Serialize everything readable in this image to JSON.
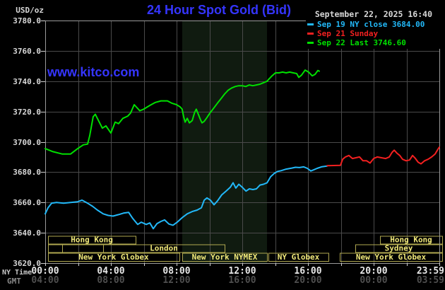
{
  "header": {
    "unit_label": "USD/oz",
    "title": "24 Hour Spot Gold (Bid)",
    "datetime": "September 22, 2025 16:40",
    "watermark": "www.kitco.com"
  },
  "legend": {
    "items": [
      {
        "label": "Sep 19 NY close 3684.00",
        "color": "#22b8f8"
      },
      {
        "label": "Sep 21 Sunday",
        "color": "#f22020"
      },
      {
        "label": "Sep 22 Last 3746.60",
        "color": "#00e000"
      }
    ]
  },
  "axes": {
    "ny_caption": "NY Time",
    "gmt_caption": "GMT"
  },
  "colors": {
    "background": "#000000",
    "grid": "#4a4a4a",
    "border": "#9a9a9a",
    "tick": "#d0d0d0",
    "title": "#3535ff",
    "date_text": "#d8d8d8",
    "y_label": "#d8d8d8",
    "x_label_ny": "#e8e8e8",
    "x_label_gmt": "#4f4f4f",
    "axis_caption_ny": "#c8c8c8",
    "axis_caption_gmt": "#8a8a8a",
    "session_border": "#b0a850",
    "session_text": "#f0e87a",
    "band": "#101b10"
  },
  "chart_data": {
    "type": "line",
    "title": "24 Hour Spot Gold (Bid)",
    "ylabel": "USD/oz",
    "ylim": [
      3620,
      3780
    ],
    "y_tick_step": 20,
    "grid": true,
    "legend_position": "top-right",
    "summary": {
      "sep19_ny_close": 3684.0,
      "sep22_last": 3746.6
    },
    "y_ticks": [
      {
        "value": 3780,
        "label": "3780.0"
      },
      {
        "value": 3760,
        "label": "3760.0"
      },
      {
        "value": 3740,
        "label": "3740.0"
      },
      {
        "value": 3720,
        "label": "3720.0"
      },
      {
        "value": 3700,
        "label": "3700.0"
      },
      {
        "value": 3680,
        "label": "3680.0"
      },
      {
        "value": 3660,
        "label": "3660.0"
      },
      {
        "value": 3640,
        "label": "3640.0"
      },
      {
        "value": 3620,
        "label": "3620.0"
      }
    ],
    "x_hours_range": [
      0,
      24
    ],
    "x_grid_step_hours": 2,
    "x_ticks": [
      {
        "hour": 0,
        "ny": "00:00",
        "gmt": "04:00"
      },
      {
        "hour": 4,
        "ny": "04:00",
        "gmt": "08:00"
      },
      {
        "hour": 8,
        "ny": "08:00",
        "gmt": "12:00"
      },
      {
        "hour": 12,
        "ny": "12:00",
        "gmt": "16:00"
      },
      {
        "hour": 16,
        "ny": "16:00",
        "gmt": "20:00"
      },
      {
        "hour": 20,
        "ny": "20:00",
        "gmt": "00:00"
      },
      {
        "hour": 24,
        "ny": "23:59",
        "gmt": "03:59",
        "align": "right"
      }
    ],
    "highlight_band": {
      "x1_hour": 8.34,
      "x2_hour": 13.51,
      "color": "#101b10"
    },
    "sessions": [
      {
        "row": 1,
        "label": "Hong Kong",
        "x1_hour": 0.17,
        "x2_hour": 5.51
      },
      {
        "row": 1,
        "label": "Hong Kong",
        "x1_hour": 20.39,
        "x2_hour": 24.17
      },
      {
        "row": 2,
        "label": "",
        "x1_hour": 0.17,
        "x2_hour": 1.03
      },
      {
        "row": 2,
        "label": "",
        "x1_hour": 1.03,
        "x2_hour": 3.53
      },
      {
        "row": 2,
        "label": "London",
        "x1_hour": 3.53,
        "x2_hour": 10.92
      },
      {
        "row": 2,
        "label": "Sydney",
        "x1_hour": 18.88,
        "x2_hour": 24.17
      },
      {
        "row": 3,
        "label": "New York Globex",
        "x1_hour": 0.17,
        "x2_hour": 8.17
      },
      {
        "row": 3,
        "label": "New York NYMEX",
        "x1_hour": 8.34,
        "x2_hour": 13.51
      },
      {
        "row": 3,
        "label": "NY Globex",
        "x1_hour": 13.59,
        "x2_hour": 17.25
      },
      {
        "row": 3,
        "label": "New York Globex",
        "x1_hour": 17.94,
        "x2_hour": 24.17
      }
    ],
    "series": [
      {
        "id": "sep19",
        "name": "Sep 19 NY close 3684.00",
        "color": "#22b8f8",
        "points": [
          [
            0,
            3652.5
          ],
          [
            0.17,
            3656.5
          ],
          [
            0.39,
            3659.5
          ],
          [
            0.69,
            3660
          ],
          [
            1.12,
            3659.5
          ],
          [
            1.55,
            3660
          ],
          [
            1.98,
            3660.5
          ],
          [
            2.24,
            3661.5
          ],
          [
            2.58,
            3659.5
          ],
          [
            2.88,
            3657.5
          ],
          [
            3.18,
            3655
          ],
          [
            3.53,
            3652.5
          ],
          [
            3.83,
            3651.5
          ],
          [
            4.13,
            3651
          ],
          [
            4.47,
            3652
          ],
          [
            4.77,
            3653
          ],
          [
            5.08,
            3653.5
          ],
          [
            5.33,
            3649.5
          ],
          [
            5.63,
            3645.5
          ],
          [
            5.85,
            3647
          ],
          [
            6.15,
            3645.5
          ],
          [
            6.37,
            3646.5
          ],
          [
            6.58,
            3642.7
          ],
          [
            6.8,
            3646
          ],
          [
            7.05,
            3647.5
          ],
          [
            7.27,
            3648.5
          ],
          [
            7.53,
            3645.8
          ],
          [
            7.78,
            3645
          ],
          [
            8.04,
            3647
          ],
          [
            8.34,
            3650
          ],
          [
            8.65,
            3652.5
          ],
          [
            8.95,
            3654
          ],
          [
            9.25,
            3655
          ],
          [
            9.51,
            3656.5
          ],
          [
            9.68,
            3661.5
          ],
          [
            9.85,
            3663
          ],
          [
            10.06,
            3661.5
          ],
          [
            10.28,
            3658.5
          ],
          [
            10.49,
            3661
          ],
          [
            10.75,
            3665
          ],
          [
            11.01,
            3667.5
          ],
          [
            11.27,
            3670
          ],
          [
            11.44,
            3673
          ],
          [
            11.61,
            3669.5
          ],
          [
            11.79,
            3672
          ],
          [
            12,
            3670
          ],
          [
            12.23,
            3667.5
          ],
          [
            12.43,
            3669
          ],
          [
            12.65,
            3668.5
          ],
          [
            12.86,
            3669
          ],
          [
            13.08,
            3671.5
          ],
          [
            13.29,
            3672
          ],
          [
            13.51,
            3673
          ],
          [
            13.73,
            3677
          ],
          [
            13.95,
            3679.2
          ],
          [
            14.16,
            3680.5
          ],
          [
            14.38,
            3681
          ],
          [
            14.67,
            3682
          ],
          [
            15.02,
            3682.7
          ],
          [
            15.24,
            3683.2
          ],
          [
            15.48,
            3683
          ],
          [
            15.74,
            3683.5
          ],
          [
            15.96,
            3682.5
          ],
          [
            16.17,
            3680.8
          ],
          [
            16.34,
            3681.5
          ],
          [
            16.56,
            3682.5
          ],
          [
            16.82,
            3683.5
          ],
          [
            17.16,
            3684
          ]
        ]
      },
      {
        "id": "sep21",
        "name": "Sep 21 Sunday",
        "color": "#f22020",
        "points": [
          [
            17.16,
            3684.3
          ],
          [
            17.98,
            3684.5
          ],
          [
            18.11,
            3688.5
          ],
          [
            18.28,
            3690
          ],
          [
            18.49,
            3691
          ],
          [
            18.71,
            3689
          ],
          [
            18.92,
            3689.5
          ],
          [
            19.14,
            3690
          ],
          [
            19.35,
            3687.5
          ],
          [
            19.57,
            3687.5
          ],
          [
            19.78,
            3686
          ],
          [
            20,
            3689
          ],
          [
            20.22,
            3690
          ],
          [
            20.47,
            3689.5
          ],
          [
            20.73,
            3689
          ],
          [
            20.95,
            3690
          ],
          [
            21.12,
            3693
          ],
          [
            21.25,
            3694.5
          ],
          [
            21.42,
            3692.5
          ],
          [
            21.59,
            3691
          ],
          [
            21.76,
            3688.5
          ],
          [
            21.98,
            3687.5
          ],
          [
            22.19,
            3688
          ],
          [
            22.37,
            3691
          ],
          [
            22.54,
            3689
          ],
          [
            22.71,
            3686.5
          ],
          [
            22.88,
            3685.5
          ],
          [
            23.1,
            3687.5
          ],
          [
            23.31,
            3688.5
          ],
          [
            23.53,
            3690
          ],
          [
            23.74,
            3692
          ],
          [
            23.91,
            3695
          ],
          [
            24,
            3696.5
          ]
        ]
      },
      {
        "id": "sep22",
        "name": "Sep 22 Last 3746.60",
        "color": "#00e000",
        "points": [
          [
            0,
            3695.5
          ],
          [
            0.47,
            3693.5
          ],
          [
            1.03,
            3692
          ],
          [
            1.55,
            3692
          ],
          [
            1.98,
            3695.5
          ],
          [
            2.32,
            3698
          ],
          [
            2.58,
            3698.5
          ],
          [
            2.71,
            3704
          ],
          [
            2.92,
            3716.5
          ],
          [
            3.05,
            3718.2
          ],
          [
            3.23,
            3714.3
          ],
          [
            3.48,
            3709
          ],
          [
            3.7,
            3710.5
          ],
          [
            4,
            3705.8
          ],
          [
            4.26,
            3713
          ],
          [
            4.47,
            3712
          ],
          [
            4.73,
            3715.5
          ],
          [
            5.03,
            3717
          ],
          [
            5.2,
            3719
          ],
          [
            5.42,
            3724.5
          ],
          [
            5.76,
            3720.5
          ],
          [
            5.99,
            3721.5
          ],
          [
            6.42,
            3724.3
          ],
          [
            6.71,
            3726
          ],
          [
            7.05,
            3727
          ],
          [
            7.44,
            3727
          ],
          [
            7.7,
            3725.5
          ],
          [
            8,
            3724.5
          ],
          [
            8.22,
            3723
          ],
          [
            8.34,
            3721.5
          ],
          [
            8.43,
            3716.5
          ],
          [
            8.52,
            3713
          ],
          [
            8.65,
            3715.5
          ],
          [
            8.78,
            3712.5
          ],
          [
            8.95,
            3714
          ],
          [
            9.1,
            3719.5
          ],
          [
            9.2,
            3721.5
          ],
          [
            9.33,
            3718
          ],
          [
            9.46,
            3714.5
          ],
          [
            9.55,
            3712.5
          ],
          [
            9.68,
            3713.5
          ],
          [
            9.85,
            3716
          ],
          [
            10,
            3718.5
          ],
          [
            10.28,
            3722.5
          ],
          [
            10.49,
            3725.5
          ],
          [
            10.71,
            3728.5
          ],
          [
            10.92,
            3731.5
          ],
          [
            11.14,
            3734
          ],
          [
            11.35,
            3735.5
          ],
          [
            11.57,
            3736.5
          ],
          [
            11.78,
            3737
          ],
          [
            12,
            3737
          ],
          [
            12.21,
            3736.5
          ],
          [
            12.43,
            3737.5
          ],
          [
            12.64,
            3737
          ],
          [
            12.86,
            3737.5
          ],
          [
            13.08,
            3738
          ],
          [
            13.29,
            3739
          ],
          [
            13.51,
            3740
          ],
          [
            13.59,
            3741
          ],
          [
            13.81,
            3743.5
          ],
          [
            14.02,
            3745.5
          ],
          [
            14.24,
            3745.5
          ],
          [
            14.45,
            3746
          ],
          [
            14.67,
            3745.5
          ],
          [
            14.88,
            3746
          ],
          [
            15.1,
            3745.5
          ],
          [
            15.31,
            3745
          ],
          [
            15.44,
            3742.5
          ],
          [
            15.61,
            3744
          ],
          [
            15.83,
            3747.3
          ],
          [
            16.04,
            3746
          ],
          [
            16.26,
            3743.5
          ],
          [
            16.43,
            3744.5
          ],
          [
            16.6,
            3747
          ],
          [
            16.69,
            3746.6
          ]
        ]
      }
    ]
  }
}
